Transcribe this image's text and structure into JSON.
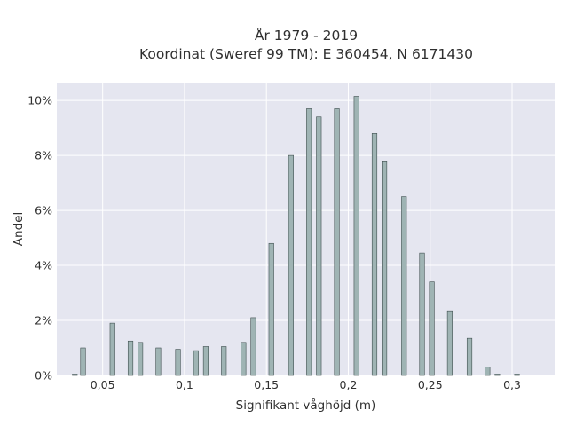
{
  "chart_data": {
    "type": "bar",
    "title": "År 1979 - 2019",
    "subtitle": "Koordinat (Sweref 99 TM): E 360454, N 6171430",
    "xlabel": "Signifikant våghöjd (m)",
    "ylabel": "Andel",
    "xlim": [
      0.022,
      0.326
    ],
    "ylim": [
      0,
      10.65
    ],
    "x_ticks": [
      0.05,
      0.1,
      0.15,
      0.2,
      0.25,
      0.3
    ],
    "x_tick_labels": [
      "0,05",
      "0,1",
      "0,15",
      "0,2",
      "0,25",
      "0,3"
    ],
    "y_ticks": [
      0,
      2,
      4,
      6,
      8,
      10
    ],
    "y_tick_labels": [
      "0%",
      "2%",
      "4%",
      "6%",
      "8%",
      "10%"
    ],
    "grid": true,
    "bar_width": 0.003,
    "colors": {
      "plot_bg": "#e5e6f0",
      "bar_fill": "#9fb4b4",
      "bar_stroke": "#3f4f4f",
      "grid": "#ffffff"
    },
    "x": [
      0.033,
      0.038,
      0.044,
      0.056,
      0.061,
      0.067,
      0.073,
      0.079,
      0.084,
      0.09,
      0.096,
      0.101,
      0.107,
      0.113,
      0.119,
      0.124,
      0.13,
      0.136,
      0.142,
      0.147,
      0.153,
      0.159,
      0.165,
      0.17,
      0.176,
      0.182,
      0.188,
      0.193,
      0.199,
      0.205,
      0.211,
      0.216,
      0.222,
      0.228,
      0.234,
      0.239,
      0.245,
      0.251,
      0.257,
      0.262,
      0.268,
      0.274,
      0.28,
      0.285,
      0.291,
      0.297,
      0.303,
      0.308,
      0.314
    ],
    "values": [
      0.05,
      1.0,
      0,
      1.9,
      0,
      1.25,
      1.2,
      0,
      1.0,
      0,
      0.95,
      0,
      0.9,
      1.05,
      0,
      1.05,
      0,
      1.2,
      2.1,
      0,
      4.8,
      0,
      8.0,
      0,
      9.7,
      9.4,
      0,
      9.7,
      0,
      10.15,
      0,
      8.8,
      7.8,
      0,
      6.5,
      0,
      4.45,
      3.4,
      0,
      2.35,
      0,
      1.35,
      0,
      0.3,
      0.05,
      0,
      0.05,
      0,
      0
    ]
  }
}
